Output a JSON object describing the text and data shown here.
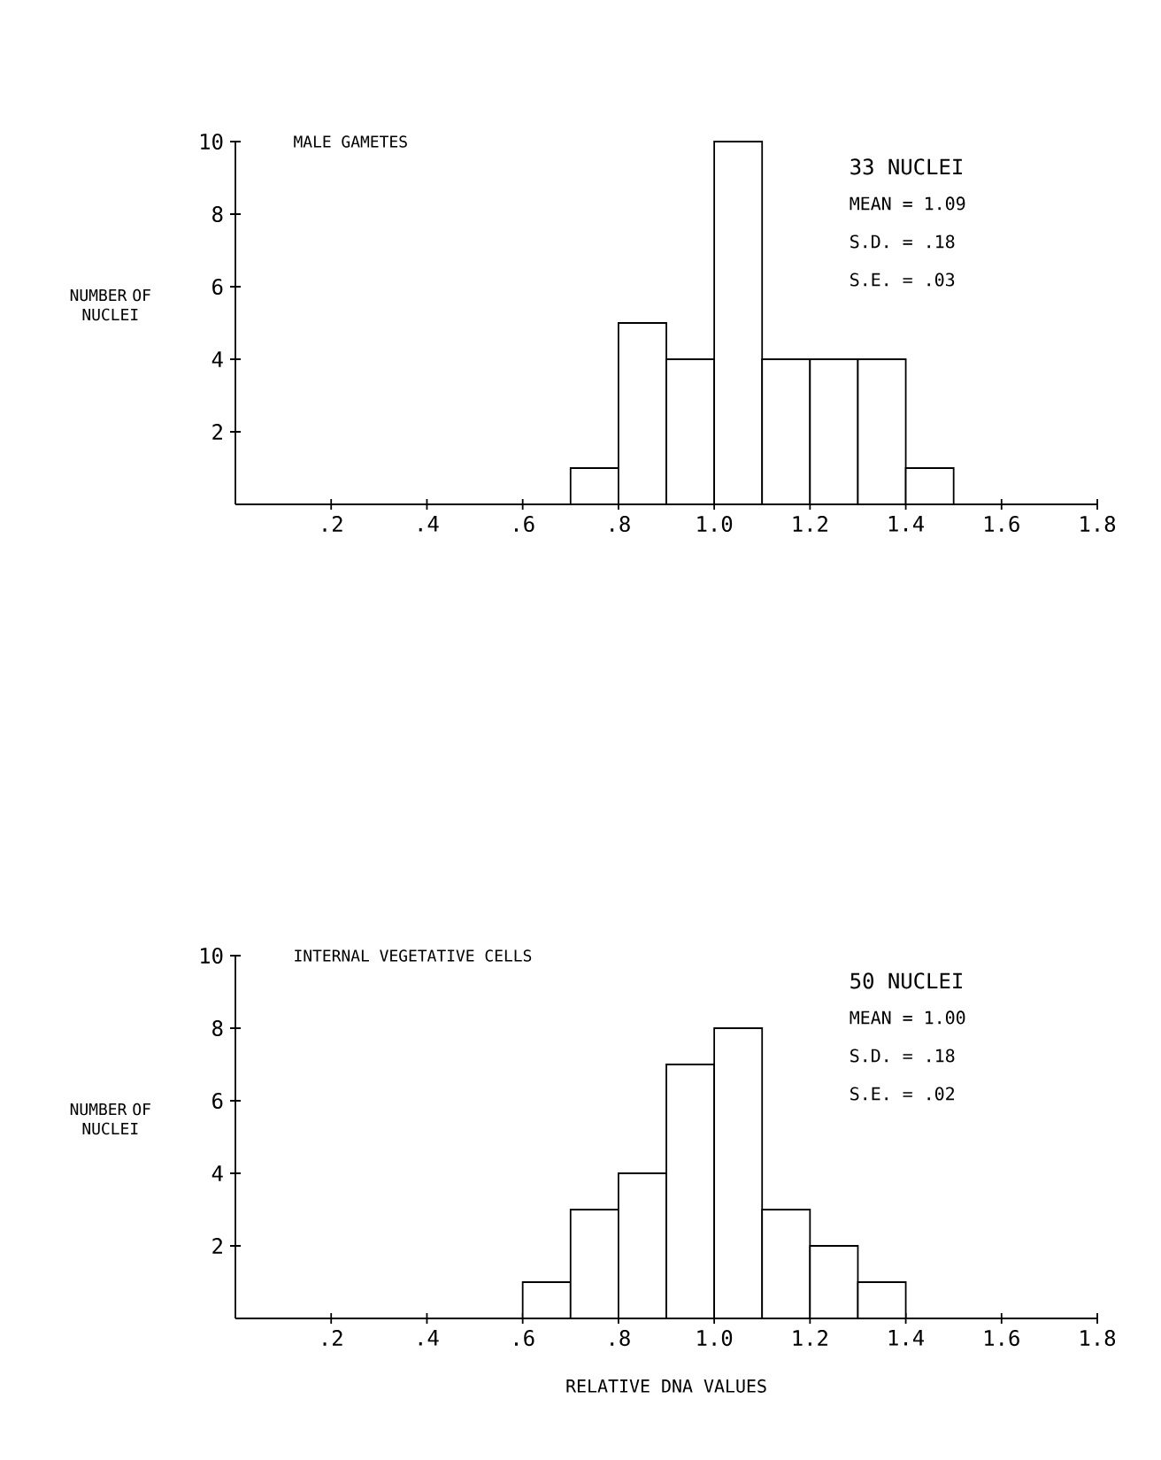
{
  "chart_data": [
    {
      "type": "histogram",
      "title": "MALE GAMETES",
      "ylabel": "NUMBER OF NUCLEI",
      "color": "#000000",
      "bins": [
        0.7,
        0.8,
        0.9,
        1.0,
        1.1,
        1.2,
        1.3,
        1.4,
        1.5
      ],
      "values": [
        1,
        5,
        4,
        10,
        4,
        4,
        4,
        1
      ],
      "xlim": [
        0,
        1.8
      ],
      "ylim": [
        0,
        10
      ],
      "xticks": [
        {
          "value": 0.2,
          "label": ".2"
        },
        {
          "value": 0.4,
          "label": ".4"
        },
        {
          "value": 0.6,
          "label": ".6"
        },
        {
          "value": 0.8,
          "label": ".8"
        },
        {
          "value": 1.0,
          "label": "1.0"
        },
        {
          "value": 1.2,
          "label": "1.2"
        },
        {
          "value": 1.4,
          "label": "1.4"
        },
        {
          "value": 1.6,
          "label": "1.6"
        },
        {
          "value": 1.8,
          "label": "1.8"
        }
      ],
      "yticks": [
        2,
        4,
        6,
        8,
        10
      ],
      "annotations": [
        "33 NUCLEI",
        "MEAN = 1.09",
        "S.D. =  .18",
        "S.E. =  .03"
      ]
    },
    {
      "type": "histogram",
      "title": "INTERNAL VEGETATIVE CELLS",
      "ylabel": "NUMBER OF NUCLEI",
      "xlabel": "RELATIVE DNA VALUES",
      "color": "#000000",
      "bins": [
        0.6,
        0.7,
        0.8,
        0.9,
        1.0,
        1.1,
        1.2,
        1.3,
        1.4
      ],
      "values": [
        1,
        3,
        4,
        7,
        8,
        3,
        2,
        1
      ],
      "xlim": [
        0,
        1.8
      ],
      "ylim": [
        0,
        10
      ],
      "xticks": [
        {
          "value": 0.2,
          "label": ".2"
        },
        {
          "value": 0.4,
          "label": ".4"
        },
        {
          "value": 0.6,
          "label": ".6"
        },
        {
          "value": 0.8,
          "label": ".8"
        },
        {
          "value": 1.0,
          "label": "1.0"
        },
        {
          "value": 1.2,
          "label": "1.2"
        },
        {
          "value": 1.4,
          "label": "1.4"
        },
        {
          "value": 1.6,
          "label": "1.6"
        },
        {
          "value": 1.8,
          "label": "1.8"
        }
      ],
      "yticks": [
        2,
        4,
        6,
        8,
        10
      ],
      "annotations": [
        "50 NUCLEI",
        "MEAN = 1.00",
        "S.D. =  .18",
        "S.E. =  .02"
      ]
    }
  ]
}
